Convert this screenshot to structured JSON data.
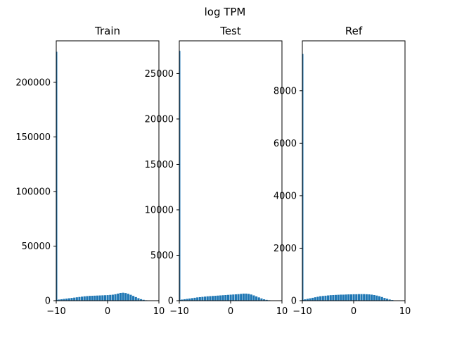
{
  "figure": {
    "title": "log TPM"
  },
  "colors": {
    "bar": "#1f77b4",
    "axis": "#000000",
    "background": "#ffffff"
  },
  "chart_data": [
    {
      "type": "bar",
      "title": "Train",
      "xlim": [
        -10,
        10
      ],
      "ylim": [
        0,
        238000
      ],
      "xticks": [
        -10,
        0,
        10
      ],
      "yticks": [
        0,
        50000,
        100000,
        150000,
        200000
      ],
      "bin_width": 0.2,
      "spike": {
        "x": -10,
        "value": 228000
      },
      "x": [
        -9.9,
        -9.5,
        -9,
        -8.5,
        -8,
        -7.5,
        -7,
        -6.5,
        -6,
        -5.5,
        -5,
        -4.5,
        -4,
        -3.5,
        -3,
        -2.5,
        -2,
        -1.5,
        -1,
        -0.5,
        0,
        0.5,
        1,
        1.5,
        2,
        2.5,
        3,
        3.5,
        4,
        4.5,
        5,
        5.5,
        6,
        6.5,
        7,
        7.5,
        8
      ],
      "values": [
        600,
        1000,
        1300,
        1600,
        1900,
        2200,
        2500,
        2800,
        3100,
        3400,
        3700,
        4000,
        4200,
        4400,
        4500,
        4600,
        4700,
        4800,
        4900,
        5000,
        5100,
        5300,
        5500,
        5900,
        6500,
        7100,
        7300,
        7000,
        6300,
        5400,
        4400,
        3300,
        2300,
        1400,
        800,
        400,
        200
      ]
    },
    {
      "type": "bar",
      "title": "Test",
      "xlim": [
        -10,
        10
      ],
      "ylim": [
        0,
        28600
      ],
      "xticks": [
        -10,
        0,
        10
      ],
      "yticks": [
        0,
        5000,
        10000,
        15000,
        20000,
        25000
      ],
      "bin_width": 0.2,
      "spike": {
        "x": -10,
        "value": 27500
      },
      "x": [
        -9.9,
        -9.5,
        -9,
        -8.5,
        -8,
        -7.5,
        -7,
        -6.5,
        -6,
        -5.5,
        -5,
        -4.5,
        -4,
        -3.5,
        -3,
        -2.5,
        -2,
        -1.5,
        -1,
        -0.5,
        0,
        0.5,
        1,
        1.5,
        2,
        2.5,
        3,
        3.5,
        4,
        4.5,
        5,
        5.5,
        6,
        6.5,
        7,
        7.5,
        8
      ],
      "values": [
        80,
        120,
        160,
        200,
        240,
        280,
        320,
        360,
        390,
        420,
        450,
        480,
        500,
        520,
        540,
        560,
        580,
        600,
        620,
        640,
        660,
        680,
        700,
        720,
        750,
        780,
        780,
        750,
        680,
        580,
        470,
        360,
        250,
        150,
        90,
        50,
        20
      ]
    },
    {
      "type": "bar",
      "title": "Ref",
      "xlim": [
        -10,
        10
      ],
      "ylim": [
        0,
        9900
      ],
      "xticks": [
        -10,
        0,
        10
      ],
      "yticks": [
        0,
        2000,
        4000,
        6000,
        8000
      ],
      "bin_width": 0.2,
      "spike": {
        "x": -10,
        "value": 9400
      },
      "x": [
        -9.9,
        -9.5,
        -9,
        -8.5,
        -8,
        -7.5,
        -7,
        -6.5,
        -6,
        -5.5,
        -5,
        -4.5,
        -4,
        -3.5,
        -3,
        -2.5,
        -2,
        -1.5,
        -1,
        -0.5,
        0,
        0.5,
        1,
        1.5,
        2,
        2.5,
        3,
        3.5,
        4,
        4.5,
        5,
        5.5,
        6,
        6.5,
        7,
        7.5,
        8
      ],
      "values": [
        30,
        50,
        70,
        90,
        110,
        130,
        150,
        170,
        180,
        190,
        200,
        210,
        215,
        220,
        225,
        230,
        230,
        235,
        240,
        240,
        245,
        245,
        250,
        250,
        250,
        245,
        240,
        230,
        215,
        195,
        170,
        140,
        105,
        75,
        45,
        25,
        10
      ]
    }
  ]
}
